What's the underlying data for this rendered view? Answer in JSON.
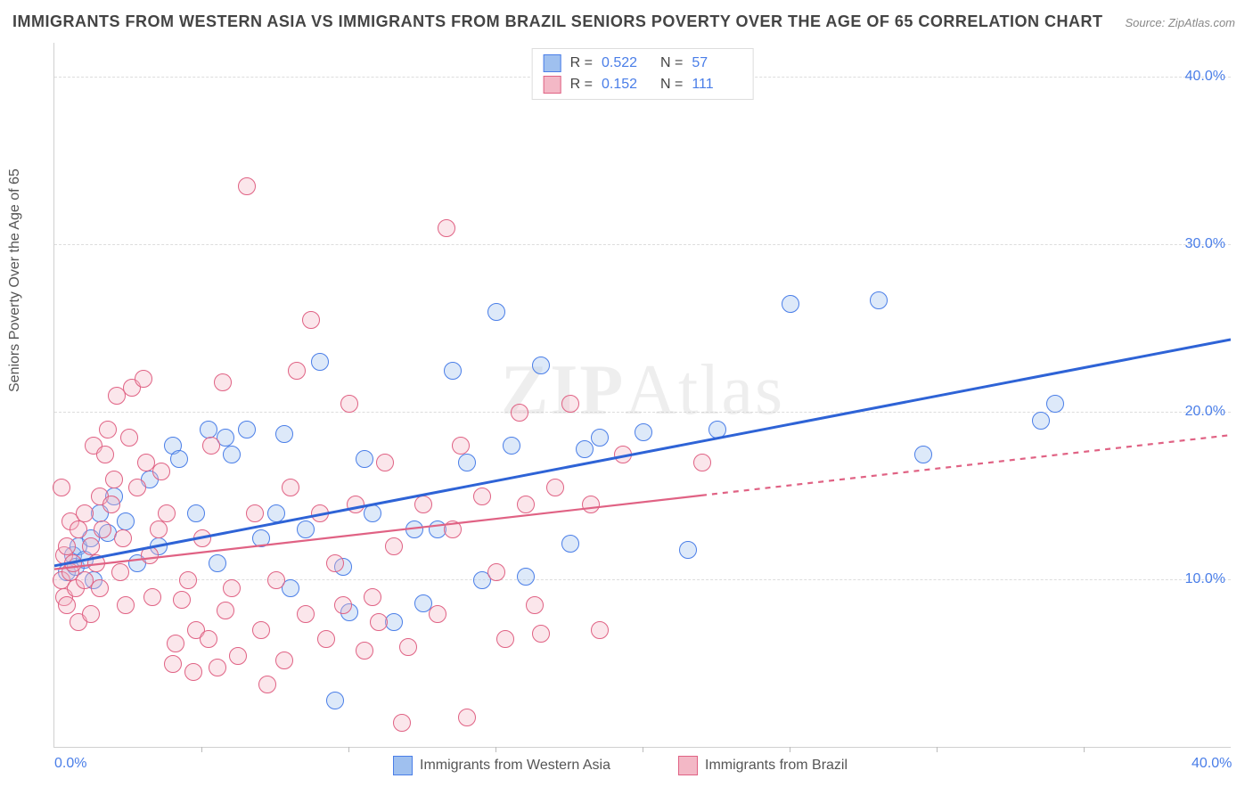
{
  "title": "IMMIGRANTS FROM WESTERN ASIA VS IMMIGRANTS FROM BRAZIL SENIORS POVERTY OVER THE AGE OF 65 CORRELATION CHART",
  "source": "Source: ZipAtlas.com",
  "y_axis_label": "Seniors Poverty Over the Age of 65",
  "watermark_a": "ZIP",
  "watermark_b": "Atlas",
  "chart": {
    "type": "scatter",
    "background_color": "#ffffff",
    "grid_color": "#dddddd",
    "axis_color": "#d0d0d0",
    "tick_color": "#4a7ee8",
    "title_color": "#444444",
    "xlim": [
      0,
      40
    ],
    "ylim": [
      0,
      42
    ],
    "y_ticks": [
      10,
      20,
      30,
      40
    ],
    "y_tick_labels": [
      "10.0%",
      "20.0%",
      "30.0%",
      "40.0%"
    ],
    "x_ticks": [
      0,
      40
    ],
    "x_tick_labels": [
      "0.0%",
      "40.0%"
    ],
    "x_minor_ticks": [
      5,
      10,
      15,
      20,
      25,
      30,
      35
    ],
    "marker_radius": 9,
    "marker_border_width": 1.2,
    "marker_fill_opacity": 0.35,
    "title_fontsize": 18,
    "label_fontsize": 16,
    "tick_fontsize": 16
  },
  "series_legend": [
    {
      "label": "Immigrants from Western Asia",
      "swatch_fill": "#9fc0ef",
      "swatch_border": "#4a7ee8"
    },
    {
      "label": "Immigrants from Brazil",
      "swatch_fill": "#f3b8c6",
      "swatch_border": "#e06284"
    }
  ],
  "top_legend": [
    {
      "swatch_fill": "#9fc0ef",
      "swatch_border": "#4a7ee8",
      "r_label": "R =",
      "r_value": "0.522",
      "n_label": "N =",
      "n_value": "57"
    },
    {
      "swatch_fill": "#f3b8c6",
      "swatch_border": "#e06284",
      "r_label": "R =",
      "r_value": "0.152",
      "n_label": "N =",
      "n_value": "111"
    }
  ],
  "trend_lines": [
    {
      "color": "#2e63d6",
      "width": 3,
      "segments": [
        {
          "x1": 0,
          "y1": 10.8,
          "x2": 40,
          "y2": 24.3,
          "dash": false
        }
      ]
    },
    {
      "color": "#e06284",
      "width": 2.2,
      "segments": [
        {
          "x1": 0,
          "y1": 10.6,
          "x2": 22,
          "y2": 15.0,
          "dash": false
        },
        {
          "x1": 22,
          "y1": 15.0,
          "x2": 40,
          "y2": 18.6,
          "dash": true
        }
      ]
    }
  ],
  "series": [
    {
      "name": "Immigrants from Western Asia",
      "fill": "#9fc0ef",
      "border": "#4a7ee8",
      "points": [
        [
          0.4,
          10.5
        ],
        [
          0.6,
          11.5
        ],
        [
          0.7,
          10.8
        ],
        [
          0.8,
          12.0
        ],
        [
          1.0,
          11.2
        ],
        [
          1.2,
          12.5
        ],
        [
          1.3,
          10.0
        ],
        [
          1.5,
          14.0
        ],
        [
          1.8,
          12.8
        ],
        [
          2.0,
          15.0
        ],
        [
          2.4,
          13.5
        ],
        [
          2.8,
          11.0
        ],
        [
          3.2,
          16.0
        ],
        [
          3.5,
          12.0
        ],
        [
          4.0,
          18.0
        ],
        [
          4.2,
          17.2
        ],
        [
          4.8,
          14.0
        ],
        [
          5.2,
          19.0
        ],
        [
          5.5,
          11.0
        ],
        [
          5.8,
          18.5
        ],
        [
          6.0,
          17.5
        ],
        [
          6.5,
          19.0
        ],
        [
          7.0,
          12.5
        ],
        [
          7.5,
          14.0
        ],
        [
          7.8,
          18.7
        ],
        [
          8.0,
          9.5
        ],
        [
          8.5,
          13.0
        ],
        [
          9.0,
          23.0
        ],
        [
          9.5,
          2.8
        ],
        [
          9.8,
          10.8
        ],
        [
          10.0,
          8.1
        ],
        [
          10.5,
          17.2
        ],
        [
          10.8,
          14.0
        ],
        [
          11.5,
          7.5
        ],
        [
          12.2,
          13.0
        ],
        [
          12.5,
          8.6
        ],
        [
          13.0,
          13.0
        ],
        [
          13.5,
          22.5
        ],
        [
          14.0,
          17.0
        ],
        [
          14.5,
          10.0
        ],
        [
          15.0,
          26.0
        ],
        [
          15.5,
          18.0
        ],
        [
          16.0,
          10.2
        ],
        [
          16.5,
          22.8
        ],
        [
          17.5,
          12.2
        ],
        [
          18.0,
          17.8
        ],
        [
          18.5,
          18.5
        ],
        [
          20.0,
          18.8
        ],
        [
          21.5,
          11.8
        ],
        [
          22.5,
          19.0
        ],
        [
          25.0,
          26.5
        ],
        [
          28.0,
          26.7
        ],
        [
          29.5,
          17.5
        ],
        [
          33.5,
          19.5
        ],
        [
          34.0,
          20.5
        ]
      ]
    },
    {
      "name": "Immigrants from Brazil",
      "fill": "#f3b8c6",
      "border": "#e06284",
      "points": [
        [
          0.2,
          15.5
        ],
        [
          0.2,
          10.0
        ],
        [
          0.3,
          11.5
        ],
        [
          0.3,
          9.0
        ],
        [
          0.4,
          12.0
        ],
        [
          0.4,
          8.5
        ],
        [
          0.5,
          13.5
        ],
        [
          0.5,
          10.5
        ],
        [
          0.6,
          11.0
        ],
        [
          0.7,
          9.5
        ],
        [
          0.8,
          13.0
        ],
        [
          0.8,
          7.5
        ],
        [
          1.0,
          14.0
        ],
        [
          1.0,
          10.0
        ],
        [
          1.2,
          12.0
        ],
        [
          1.2,
          8.0
        ],
        [
          1.3,
          18.0
        ],
        [
          1.4,
          11.0
        ],
        [
          1.5,
          15.0
        ],
        [
          1.5,
          9.5
        ],
        [
          1.6,
          13.0
        ],
        [
          1.7,
          17.5
        ],
        [
          1.8,
          19.0
        ],
        [
          1.9,
          14.5
        ],
        [
          2.0,
          16.0
        ],
        [
          2.1,
          21.0
        ],
        [
          2.2,
          10.5
        ],
        [
          2.3,
          12.5
        ],
        [
          2.4,
          8.5
        ],
        [
          2.5,
          18.5
        ],
        [
          2.6,
          21.5
        ],
        [
          2.8,
          15.5
        ],
        [
          3.0,
          22.0
        ],
        [
          3.1,
          17.0
        ],
        [
          3.2,
          11.5
        ],
        [
          3.3,
          9.0
        ],
        [
          3.5,
          13.0
        ],
        [
          3.6,
          16.5
        ],
        [
          3.8,
          14.0
        ],
        [
          4.0,
          5.0
        ],
        [
          4.1,
          6.2
        ],
        [
          4.3,
          8.8
        ],
        [
          4.5,
          10.0
        ],
        [
          4.7,
          4.5
        ],
        [
          4.8,
          7.0
        ],
        [
          5.0,
          12.5
        ],
        [
          5.2,
          6.5
        ],
        [
          5.3,
          18.0
        ],
        [
          5.5,
          4.8
        ],
        [
          5.7,
          21.8
        ],
        [
          5.8,
          8.2
        ],
        [
          6.0,
          9.5
        ],
        [
          6.2,
          5.5
        ],
        [
          6.5,
          33.5
        ],
        [
          6.8,
          14.0
        ],
        [
          7.0,
          7.0
        ],
        [
          7.2,
          3.8
        ],
        [
          7.5,
          10.0
        ],
        [
          7.8,
          5.2
        ],
        [
          8.0,
          15.5
        ],
        [
          8.2,
          22.5
        ],
        [
          8.5,
          8.0
        ],
        [
          8.7,
          25.5
        ],
        [
          9.0,
          14.0
        ],
        [
          9.2,
          6.5
        ],
        [
          9.5,
          11.0
        ],
        [
          9.8,
          8.5
        ],
        [
          10.0,
          20.5
        ],
        [
          10.2,
          14.5
        ],
        [
          10.5,
          5.8
        ],
        [
          10.8,
          9.0
        ],
        [
          11.0,
          7.5
        ],
        [
          11.2,
          17.0
        ],
        [
          11.5,
          12.0
        ],
        [
          11.8,
          1.5
        ],
        [
          12.0,
          6.0
        ],
        [
          12.5,
          14.5
        ],
        [
          13.0,
          8.0
        ],
        [
          13.3,
          31.0
        ],
        [
          13.5,
          13.0
        ],
        [
          13.8,
          18.0
        ],
        [
          14.0,
          1.8
        ],
        [
          14.5,
          15.0
        ],
        [
          15.0,
          10.5
        ],
        [
          15.3,
          6.5
        ],
        [
          15.8,
          20.0
        ],
        [
          16.0,
          14.5
        ],
        [
          16.3,
          8.5
        ],
        [
          16.5,
          6.8
        ],
        [
          17.0,
          15.5
        ],
        [
          17.5,
          20.5
        ],
        [
          18.2,
          14.5
        ],
        [
          18.5,
          7.0
        ],
        [
          19.3,
          17.5
        ],
        [
          22.0,
          17.0
        ]
      ]
    }
  ]
}
